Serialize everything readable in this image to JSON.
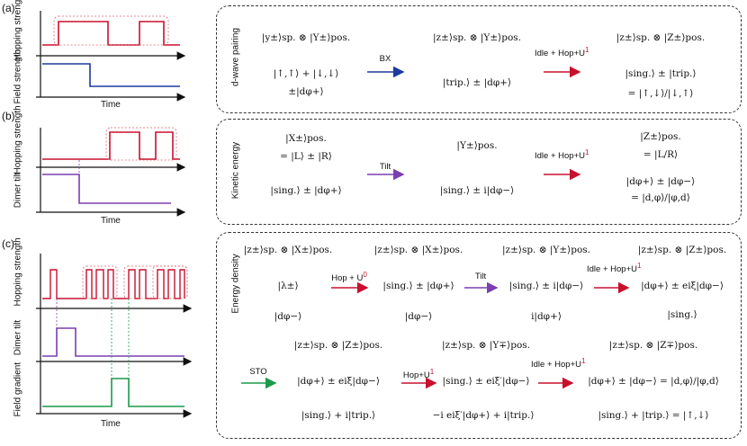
{
  "panels": {
    "a": {
      "label": "(a)",
      "plot": {
        "y_top": "Hopping strength",
        "y_bottom": "Field strength",
        "x": "Time"
      },
      "side_title": "d-wave pairing",
      "states": [
        {
          "top": "|y±⟩sp. ⊗ |Y±⟩pos.",
          "mid": "|↑,↑⟩ + |↓,↓⟩",
          "bot": "±|dφ+⟩"
        },
        {
          "top": "|z±⟩sp. ⊗ |Y±⟩pos.",
          "mid": "|trip.⟩ ± |dφ+⟩"
        },
        {
          "top": "|z±⟩sp. ⊗ |Z±⟩pos.",
          "mid": "|sing.⟩ ± |trip.⟩",
          "bot": "= |↑,↓⟩/|↓,↑⟩"
        }
      ],
      "ops": [
        {
          "text": "BX",
          "color": "#1f3a9e"
        },
        {
          "text": "Idle + Hop+U",
          "sup": "1",
          "color": "#c8102e"
        }
      ]
    },
    "b": {
      "label": "(b)",
      "plot": {
        "y_top": "Hopping strength",
        "y_bottom": "Dimer tilt",
        "x": "Time"
      },
      "side_title": "Kinetic energy",
      "states": [
        {
          "top": "|X±⟩pos.",
          "mid": "= |L⟩ ± |R⟩",
          "bot": "|sing.⟩ ± |dφ+⟩"
        },
        {
          "top": "|Y±⟩pos.",
          "mid": "|sing.⟩ ± i|dφ−⟩"
        },
        {
          "top": "|Z±⟩pos.",
          "mid": "= |L/R⟩",
          "bot": "|dφ+⟩ ± |dφ−⟩",
          "bot2": "= |d,φ⟩/|φ,d⟩"
        }
      ],
      "ops": [
        {
          "text": "Tilt",
          "color": "#7b3fb0"
        },
        {
          "text": "Idle + Hop+U",
          "sup": "1",
          "color": "#c8102e"
        }
      ]
    },
    "c": {
      "label": "(c)",
      "plot": {
        "y_top": "Hopping strength",
        "y_mid": "Dimer tilt",
        "y_bottom": "Field gradient",
        "x": "Time"
      },
      "side_title": "Energy density",
      "row1": [
        {
          "top": "|z±⟩sp. ⊗ |X±⟩pos.",
          "mid": "|λ±⟩",
          "bot": "|dφ−⟩"
        },
        {
          "top": "|z±⟩sp. ⊗ |X±⟩pos.",
          "mid": "|sing.⟩ ± |dφ+⟩",
          "bot": "|dφ−⟩"
        },
        {
          "top": "|z±⟩sp. ⊗ |Y±⟩pos.",
          "mid": "|sing.⟩ ± i|dφ−⟩",
          "bot": "i|dφ+⟩"
        },
        {
          "top": "|z±⟩sp. ⊗ |Z±⟩pos.",
          "mid": "|dφ+⟩ ± eiξ|dφ−⟩",
          "bot": "|sing.⟩"
        }
      ],
      "row1_ops": [
        {
          "text": "Hop + U",
          "sup": "0",
          "color": "#c8102e"
        },
        {
          "text": "Tilt",
          "color": "#7b3fb0"
        },
        {
          "text": "Idle + Hop+U",
          "sup": "1",
          "color": "#c8102e"
        }
      ],
      "row2": [
        {
          "top": "|z±⟩sp. ⊗ |Z±⟩pos.",
          "mid": "|dφ+⟩ ± eiξ|dφ−⟩",
          "bot": "|sing.⟩ + i|trip.⟩"
        },
        {
          "top": "|z±⟩sp. ⊗ |Y∓⟩pos.",
          "mid": "|sing.⟩ ± eiξ′|dφ−⟩",
          "bot": "−i eiξ′|dφ+⟩ + i|trip.⟩"
        },
        {
          "top": "|z±⟩sp. ⊗ |Z∓⟩pos.",
          "mid": "|dφ+⟩ ± |dφ−⟩ = |d,φ⟩/|φ,d⟩",
          "bot": "|sing.⟩ + |trip.⟩ = |↑,↓⟩"
        }
      ],
      "row2_ops": [
        {
          "text": "STO",
          "color": "#1a9a4a"
        },
        {
          "text": "Hop+U",
          "sup": "1",
          "color": "#c8102e"
        },
        {
          "text": "Idle + Hop+U",
          "sup": "1",
          "color": "#c8102e"
        }
      ]
    }
  },
  "colors": {
    "hop": "#c8102e",
    "field": "#1f3a9e",
    "tilt": "#7b3fb0",
    "gradient": "#1a9a4a"
  }
}
